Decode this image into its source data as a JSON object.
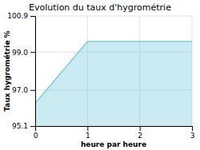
{
  "chart_data": {
    "type": "area",
    "title": "Evolution du taux d'hygrométrie",
    "xlabel": "heure par heure",
    "ylabel": "Taux hygrométrie %",
    "x": [
      0,
      1,
      2,
      3
    ],
    "y": [
      96.3,
      99.55,
      99.55,
      99.55
    ],
    "xlim": [
      0,
      3
    ],
    "ylim": [
      95.1,
      100.9
    ],
    "xticks": [
      0,
      1,
      2,
      3
    ],
    "yticks": [
      95.1,
      {
        "value": 97.0,
        "label": "97.0"
      },
      {
        "value": 99.0,
        "label": "99.0"
      },
      100.9
    ],
    "color": "#7dcde0",
    "grid": true
  }
}
